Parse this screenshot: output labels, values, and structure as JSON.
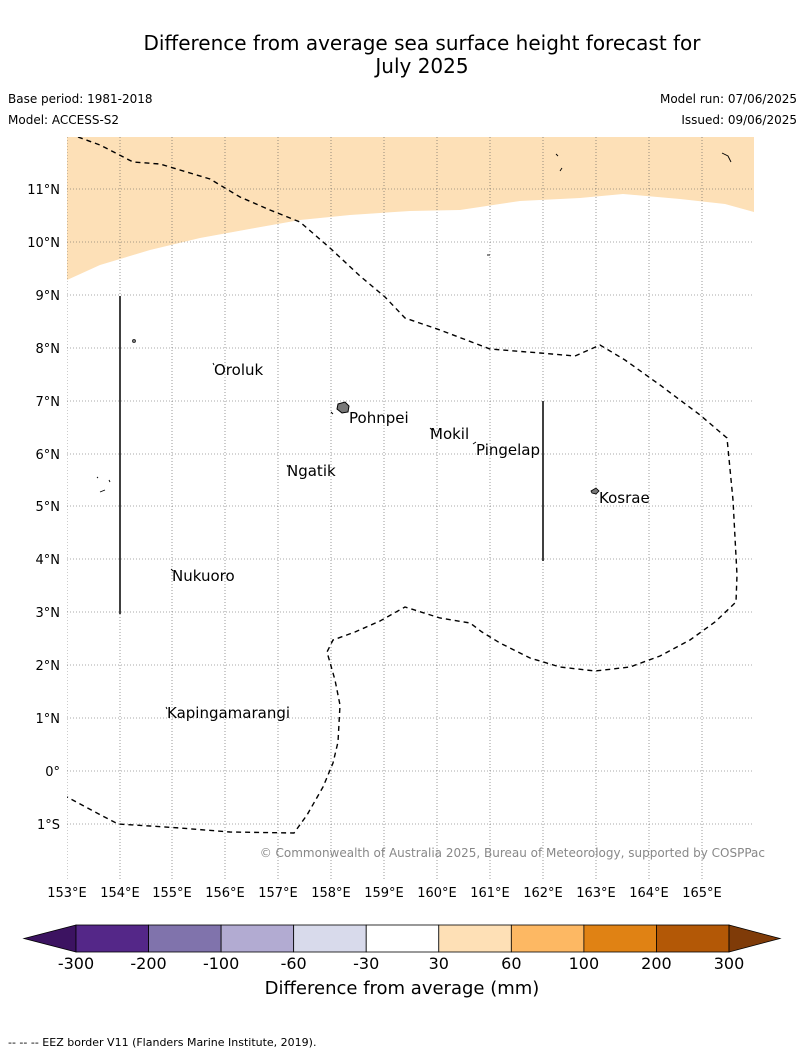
{
  "title": {
    "line1": "Difference from average sea surface height forecast for",
    "line2": "July 2025"
  },
  "header": {
    "base_period": "Base period: 1981-2018",
    "model": "Model: ACCESS-S2",
    "model_run": "Model run: 07/06/2025",
    "issued": "Issued: 09/06/2025"
  },
  "map": {
    "lat_labels": [
      "11°N",
      "10°N",
      "9°N",
      "8°N",
      "7°N",
      "6°N",
      "5°N",
      "4°N",
      "3°N",
      "2°N",
      "1°N",
      "0°",
      "1°S"
    ],
    "lon_labels": [
      "153°E",
      "154°E",
      "155°E",
      "156°E",
      "157°E",
      "158°E",
      "159°E",
      "160°E",
      "161°E",
      "162°E",
      "163°E",
      "164°E",
      "165°E"
    ],
    "places": [
      "Oroluk",
      "Pohnpei",
      "Mokil",
      "Pingelap",
      "Ngatik",
      "Kosrae",
      "Nukuoro",
      "Kapingamarangi"
    ],
    "copyright": "© Commonwealth of Australia 2025, Bureau of Meteorology, supported by COSPPac",
    "anomaly_fill_color": "#fde0b7",
    "eez_line_style": "dashed"
  },
  "colorbar": {
    "ticks": [
      "-300",
      "-200",
      "-100",
      "-60",
      "-30",
      "30",
      "60",
      "100",
      "200",
      "300"
    ],
    "colors": [
      "#3c1361",
      "#542788",
      "#8073ac",
      "#b2abd2",
      "#d8daeb",
      "#ffffff",
      "#fee0b6",
      "#fdb863",
      "#e08214",
      "#b35806",
      "#7f3b08"
    ],
    "label": "Difference from average (mm)"
  },
  "footer": "-- -- -- EEZ border V11 (Flanders Marine Institute, 2019)."
}
